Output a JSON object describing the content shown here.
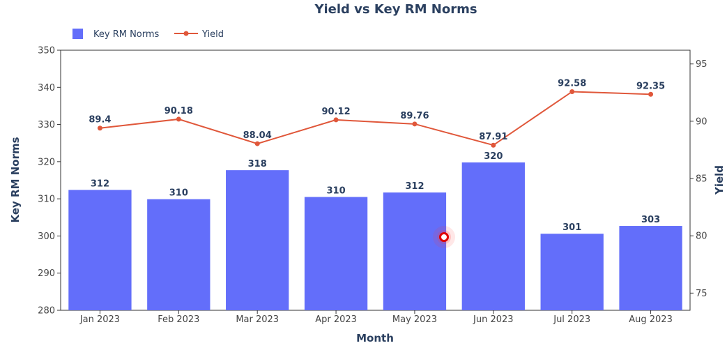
{
  "chart_data": {
    "type": "bar",
    "title": "Yield vs Key RM Norms",
    "xlabel": "Month",
    "ylabel": "Key RM Norms",
    "y2label": "Yield",
    "categories": [
      "Jan 2023",
      "Feb 2023",
      "Mar 2023",
      "Apr 2023",
      "May 2023",
      "Jun 2023",
      "Jul 2023",
      "Aug 2023"
    ],
    "series": [
      {
        "name": "Key RM Norms",
        "type": "bar",
        "axis": "left",
        "color": "#636efa",
        "values": [
          312.4,
          309.9,
          317.7,
          310.5,
          311.7,
          319.8,
          300.6,
          302.7
        ],
        "labels": [
          "312",
          "310",
          "318",
          "310",
          "312",
          "320",
          "301",
          "303"
        ]
      },
      {
        "name": "Yield",
        "type": "line",
        "axis": "right",
        "color": "#e0573a",
        "values": [
          89.4,
          90.18,
          88.04,
          90.12,
          89.76,
          87.91,
          92.58,
          92.35
        ],
        "labels": [
          "89.4",
          "90.18",
          "88.04",
          "90.12",
          "89.76",
          "87.91",
          "92.58",
          "92.35"
        ]
      }
    ],
    "ylim": [
      280,
      350
    ],
    "yticks": [
      "280",
      "290",
      "300",
      "310",
      "320",
      "330",
      "340",
      "350"
    ],
    "y2lim": [
      73.5,
      96.2
    ],
    "y2ticks": [
      "75",
      "80",
      "85",
      "90",
      "95"
    ],
    "legend": "top-left",
    "grid": false
  }
}
